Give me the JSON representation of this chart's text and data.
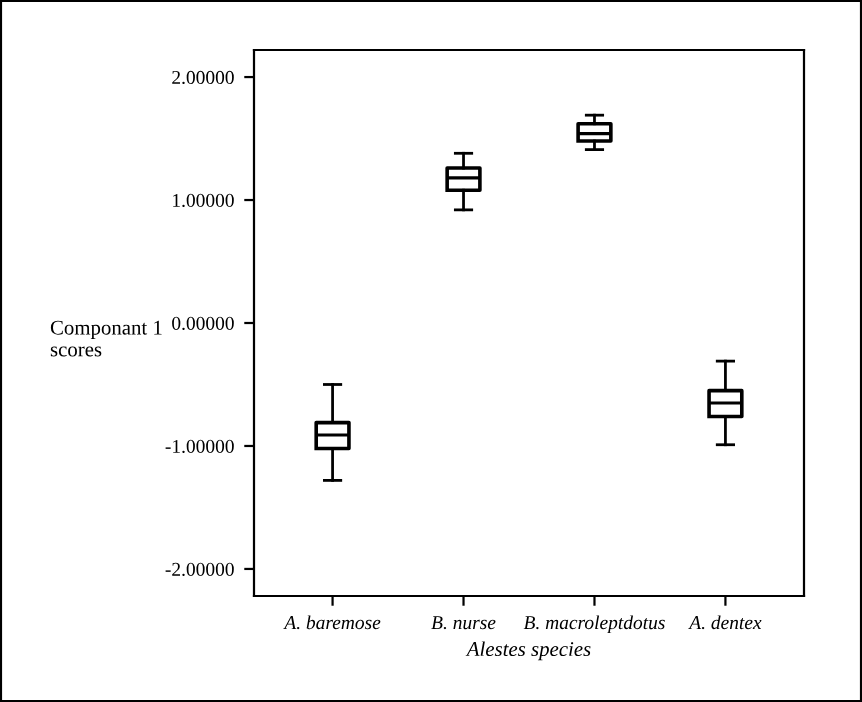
{
  "chart_data": {
    "type": "box",
    "xlabel": "Alestes species",
    "ylabel": "Componant 1\nscores",
    "categories": [
      "A. baremose",
      "B. nurse",
      "B. macroleptdotus",
      "A. dentex"
    ],
    "boxes": [
      {
        "low": -1.28,
        "q1": -1.02,
        "median": -0.91,
        "q3": -0.81,
        "high": -0.5
      },
      {
        "low": 0.92,
        "q1": 1.08,
        "median": 1.18,
        "q3": 1.26,
        "high": 1.38
      },
      {
        "low": 1.41,
        "q1": 1.48,
        "median": 1.54,
        "q3": 1.62,
        "high": 1.69
      },
      {
        "low": -0.99,
        "q1": -0.76,
        "median": -0.65,
        "q3": -0.55,
        "high": -0.31
      }
    ],
    "color": "#000000",
    "ylim": [
      -2.22,
      2.22
    ],
    "yticks": [
      {
        "value": -2,
        "label": "-2.00000"
      },
      {
        "value": -1,
        "label": "-1.00000"
      },
      {
        "value": 0,
        "label": "0.00000"
      },
      {
        "value": 1,
        "label": "1.00000"
      },
      {
        "value": 2,
        "label": "2.00000"
      }
    ],
    "grid": false,
    "legend": false
  }
}
